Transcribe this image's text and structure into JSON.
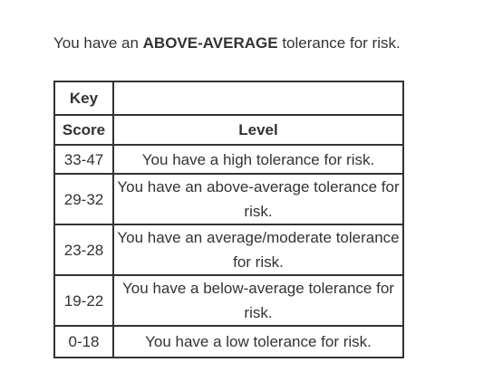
{
  "result": {
    "prefix": "You have an",
    "rating": "ABOVE-AVERAGE",
    "suffix": "tolerance for risk."
  },
  "table": {
    "key_label": "Key",
    "headers": [
      "Score",
      "Level"
    ],
    "rows": [
      {
        "score": "33-47",
        "level": "You have a high tolerance for risk."
      },
      {
        "score": "29-32",
        "level": "You have an above-average tolerance for risk."
      },
      {
        "score": "23-28",
        "level": "You have an average/moderate tolerance for risk."
      },
      {
        "score": "19-22",
        "level": "You have a below-average tolerance for risk."
      },
      {
        "score": "0-18",
        "level": "You have a low tolerance for risk."
      }
    ]
  }
}
